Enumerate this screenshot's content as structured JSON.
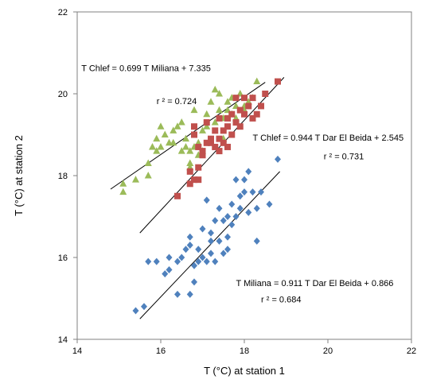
{
  "chart_data": {
    "type": "scatter",
    "title": "",
    "xlabel": "T (°C) at station 1",
    "ylabel": "T (°C) at station 2",
    "xlim": [
      14,
      22
    ],
    "ylim": [
      14,
      22
    ],
    "x_ticks": [
      "14",
      "16",
      "18",
      "20",
      "22"
    ],
    "y_ticks": [
      "14",
      "16",
      "18",
      "20",
      "22"
    ],
    "grid": false,
    "legend": "none",
    "series": [
      {
        "color": "#9bbb59",
        "marker": "triangle",
        "points": [
          [
            15.1,
            17.8
          ],
          [
            15.1,
            17.6
          ],
          [
            15.4,
            17.9
          ],
          [
            15.7,
            18.0
          ],
          [
            15.7,
            18.3
          ],
          [
            15.8,
            18.7
          ],
          [
            15.9,
            18.9
          ],
          [
            15.9,
            18.6
          ],
          [
            16.0,
            19.2
          ],
          [
            16.0,
            18.7
          ],
          [
            16.1,
            19.0
          ],
          [
            16.2,
            18.8
          ],
          [
            16.3,
            19.1
          ],
          [
            16.3,
            18.8
          ],
          [
            16.4,
            19.2
          ],
          [
            16.5,
            19.3
          ],
          [
            16.5,
            18.6
          ],
          [
            16.6,
            18.9
          ],
          [
            16.6,
            18.7
          ],
          [
            16.7,
            18.3
          ],
          [
            16.7,
            18.6
          ],
          [
            16.8,
            18.7
          ],
          [
            16.8,
            19.6
          ],
          [
            16.9,
            18.8
          ],
          [
            17.0,
            19.1
          ],
          [
            17.0,
            18.6
          ],
          [
            17.1,
            19.2
          ],
          [
            17.1,
            19.5
          ],
          [
            17.2,
            19.8
          ],
          [
            17.2,
            18.8
          ],
          [
            17.3,
            20.1
          ],
          [
            17.3,
            19.3
          ],
          [
            17.4,
            19.6
          ],
          [
            17.4,
            20.0
          ],
          [
            17.5,
            18.9
          ],
          [
            17.5,
            19.4
          ],
          [
            17.6,
            19.6
          ],
          [
            17.6,
            19.8
          ],
          [
            17.7,
            19.9
          ],
          [
            17.7,
            19.5
          ],
          [
            17.8,
            19.7
          ],
          [
            17.8,
            19.4
          ],
          [
            17.9,
            20.0
          ],
          [
            18.0,
            19.7
          ],
          [
            18.0,
            19.6
          ],
          [
            18.1,
            19.8
          ],
          [
            18.3,
            20.3
          ],
          [
            18.2,
            19.9
          ],
          [
            16.7,
            18.2
          ],
          [
            16.9,
            18.5
          ]
        ]
      },
      {
        "color": "#c0504d",
        "marker": "square",
        "points": [
          [
            16.4,
            17.5
          ],
          [
            16.7,
            18.1
          ],
          [
            16.7,
            17.8
          ],
          [
            16.8,
            17.9
          ],
          [
            16.8,
            19.0
          ],
          [
            16.9,
            17.9
          ],
          [
            16.9,
            18.7
          ],
          [
            16.9,
            18.2
          ],
          [
            17.0,
            18.6
          ],
          [
            17.1,
            18.8
          ],
          [
            17.1,
            19.3
          ],
          [
            17.2,
            18.9
          ],
          [
            17.3,
            19.1
          ],
          [
            17.3,
            18.7
          ],
          [
            17.4,
            19.4
          ],
          [
            17.4,
            18.6
          ],
          [
            17.5,
            18.8
          ],
          [
            17.5,
            19.1
          ],
          [
            17.6,
            19.2
          ],
          [
            17.6,
            18.7
          ],
          [
            17.7,
            19.5
          ],
          [
            17.7,
            19.0
          ],
          [
            17.8,
            19.3
          ],
          [
            17.8,
            19.9
          ],
          [
            17.9,
            19.6
          ],
          [
            17.9,
            19.2
          ],
          [
            18.0,
            19.5
          ],
          [
            18.0,
            19.9
          ],
          [
            18.1,
            19.7
          ],
          [
            18.2,
            19.4
          ],
          [
            18.2,
            19.9
          ],
          [
            18.3,
            19.5
          ],
          [
            18.4,
            19.7
          ],
          [
            18.5,
            20.0
          ],
          [
            18.8,
            20.3
          ],
          [
            17.2,
            18.8
          ],
          [
            17.4,
            18.9
          ],
          [
            17.0,
            18.5
          ],
          [
            16.8,
            19.2
          ],
          [
            17.6,
            19.4
          ]
        ]
      },
      {
        "color": "#4f81bd",
        "marker": "diamond",
        "points": [
          [
            15.4,
            14.7
          ],
          [
            15.6,
            14.8
          ],
          [
            15.7,
            15.9
          ],
          [
            15.9,
            15.9
          ],
          [
            16.1,
            15.6
          ],
          [
            16.2,
            15.7
          ],
          [
            16.2,
            16.0
          ],
          [
            16.4,
            15.1
          ],
          [
            16.4,
            15.9
          ],
          [
            16.5,
            16.0
          ],
          [
            16.6,
            16.2
          ],
          [
            16.7,
            15.1
          ],
          [
            16.7,
            16.3
          ],
          [
            16.8,
            15.4
          ],
          [
            16.8,
            15.8
          ],
          [
            16.9,
            15.9
          ],
          [
            17.0,
            16.7
          ],
          [
            17.0,
            16.0
          ],
          [
            17.1,
            17.4
          ],
          [
            17.1,
            15.9
          ],
          [
            17.2,
            16.4
          ],
          [
            17.2,
            16.1
          ],
          [
            17.3,
            15.9
          ],
          [
            17.3,
            16.9
          ],
          [
            17.4,
            17.2
          ],
          [
            17.4,
            16.4
          ],
          [
            17.5,
            16.1
          ],
          [
            17.5,
            16.9
          ],
          [
            17.6,
            17.0
          ],
          [
            17.6,
            16.5
          ],
          [
            17.7,
            17.3
          ],
          [
            17.7,
            16.8
          ],
          [
            17.8,
            17.9
          ],
          [
            17.8,
            17.0
          ],
          [
            17.9,
            17.5
          ],
          [
            17.9,
            17.2
          ],
          [
            18.0,
            17.6
          ],
          [
            18.0,
            17.9
          ],
          [
            18.1,
            18.1
          ],
          [
            18.1,
            17.1
          ],
          [
            18.2,
            17.6
          ],
          [
            18.3,
            17.2
          ],
          [
            18.3,
            16.4
          ],
          [
            18.4,
            17.6
          ],
          [
            18.6,
            17.3
          ],
          [
            18.8,
            18.4
          ],
          [
            16.7,
            16.5
          ],
          [
            16.9,
            16.2
          ],
          [
            17.2,
            16.6
          ],
          [
            17.6,
            16.2
          ]
        ]
      }
    ],
    "trendlines": [
      {
        "x": [
          14.8,
          18.5
        ],
        "y": [
          17.67,
          20.28
        ]
      },
      {
        "x": [
          15.5,
          18.95
        ],
        "y": [
          16.6,
          20.4
        ]
      },
      {
        "x": [
          15.5,
          18.85
        ],
        "y": [
          14.5,
          18.1
        ]
      }
    ],
    "annotations": [
      {
        "text": "T Chlef = 0.699 T Miliana + 7.335",
        "x": 14.1,
        "y": 20.55
      },
      {
        "text": "r ² = 0.724",
        "x": 15.9,
        "y": 19.75
      },
      {
        "text": "T Chlef = 0.944 T Dar El Beida + 2.545",
        "x": 18.2,
        "y": 18.85
      },
      {
        "text": "r ² = 0.731",
        "x": 19.9,
        "y": 18.4
      },
      {
        "text": "T Miliana = 0.911 T Dar El Beida + 0.866",
        "x": 17.8,
        "y": 15.3
      },
      {
        "text": "r ² = 0.684",
        "x": 18.4,
        "y": 14.9
      }
    ]
  }
}
